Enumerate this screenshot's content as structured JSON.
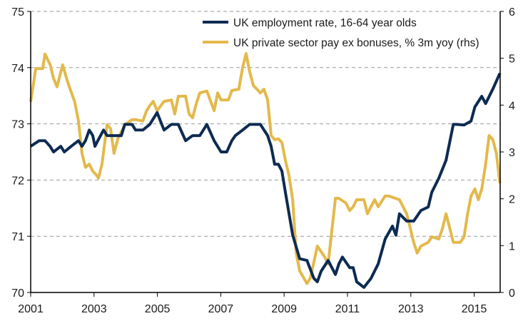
{
  "chart_data": {
    "type": "line",
    "title": "",
    "xlabel": "",
    "ylabel": "",
    "y2label": "",
    "xlim": [
      2001,
      2015.82
    ],
    "ylim": [
      70,
      75
    ],
    "y2lim": [
      0,
      6
    ],
    "x_ticks": [
      "2001",
      "2003",
      "2005",
      "2007",
      "2009",
      "2011",
      "2013",
      "2015"
    ],
    "y_ticks": [
      "70",
      "71",
      "72",
      "73",
      "74",
      "75"
    ],
    "y2_ticks": [
      "0",
      "1",
      "2",
      "3",
      "4",
      "5",
      "6"
    ],
    "grid": "horizontal dashed",
    "legend_position": "top-right",
    "series": [
      {
        "name": "UK employment rate, 16-64 year olds",
        "axis": "left",
        "color": "#0d2b52",
        "points": [
          [
            2001.0,
            72.6
          ],
          [
            2001.27,
            72.7
          ],
          [
            2001.45,
            72.7
          ],
          [
            2001.61,
            72.6
          ],
          [
            2001.72,
            72.5
          ],
          [
            2001.95,
            72.6
          ],
          [
            2002.06,
            72.5
          ],
          [
            2002.28,
            72.6
          ],
          [
            2002.51,
            72.7
          ],
          [
            2002.62,
            72.6
          ],
          [
            2002.73,
            72.7
          ],
          [
            2002.85,
            72.89
          ],
          [
            2002.96,
            72.79
          ],
          [
            2003.03,
            72.6
          ],
          [
            2003.12,
            72.7
          ],
          [
            2003.3,
            72.89
          ],
          [
            2003.41,
            72.79
          ],
          [
            2003.86,
            72.79
          ],
          [
            2003.97,
            72.99
          ],
          [
            2004.2,
            72.99
          ],
          [
            2004.31,
            72.89
          ],
          [
            2004.54,
            72.89
          ],
          [
            2004.76,
            72.99
          ],
          [
            2004.99,
            73.2
          ],
          [
            2005.21,
            72.89
          ],
          [
            2005.44,
            72.99
          ],
          [
            2005.66,
            72.99
          ],
          [
            2005.89,
            72.7
          ],
          [
            2006.11,
            72.79
          ],
          [
            2006.34,
            72.79
          ],
          [
            2006.56,
            72.99
          ],
          [
            2006.79,
            72.7
          ],
          [
            2007.01,
            72.5
          ],
          [
            2007.19,
            72.5
          ],
          [
            2007.35,
            72.7
          ],
          [
            2007.46,
            72.79
          ],
          [
            2007.69,
            72.89
          ],
          [
            2007.91,
            72.99
          ],
          [
            2008.25,
            72.99
          ],
          [
            2008.48,
            72.79
          ],
          [
            2008.59,
            72.6
          ],
          [
            2008.7,
            72.28
          ],
          [
            2008.82,
            72.28
          ],
          [
            2008.93,
            72.16
          ],
          [
            2009.04,
            71.78
          ],
          [
            2009.27,
            71.02
          ],
          [
            2009.49,
            70.6
          ],
          [
            2009.72,
            70.57
          ],
          [
            2009.94,
            70.25
          ],
          [
            2010.05,
            70.19
          ],
          [
            2010.17,
            70.38
          ],
          [
            2010.39,
            70.57
          ],
          [
            2010.62,
            70.32
          ],
          [
            2010.73,
            70.51
          ],
          [
            2010.84,
            70.63
          ],
          [
            2011.07,
            70.44
          ],
          [
            2011.18,
            70.44
          ],
          [
            2011.29,
            70.19
          ],
          [
            2011.52,
            70.09
          ],
          [
            2011.74,
            70.25
          ],
          [
            2011.97,
            70.51
          ],
          [
            2012.19,
            70.95
          ],
          [
            2012.42,
            71.18
          ],
          [
            2012.53,
            71.02
          ],
          [
            2012.64,
            71.4
          ],
          [
            2012.87,
            71.27
          ],
          [
            2013.09,
            71.27
          ],
          [
            2013.32,
            71.46
          ],
          [
            2013.55,
            71.52
          ],
          [
            2013.66,
            71.78
          ],
          [
            2013.88,
            72.03
          ],
          [
            2014.11,
            72.35
          ],
          [
            2014.34,
            72.99
          ],
          [
            2014.45,
            72.99
          ],
          [
            2014.68,
            72.98
          ],
          [
            2014.9,
            73.05
          ],
          [
            2015.02,
            73.3
          ],
          [
            2015.24,
            73.49
          ],
          [
            2015.36,
            73.36
          ],
          [
            2015.59,
            73.62
          ],
          [
            2015.81,
            73.9
          ]
        ]
      },
      {
        "name": "UK private sector pay ex bonuses, % 3m yoy (rhs)",
        "axis": "right",
        "color": "#e3b94b",
        "points": [
          [
            2001.0,
            4.07
          ],
          [
            2001.16,
            4.78
          ],
          [
            2001.27,
            4.78
          ],
          [
            2001.38,
            4.78
          ],
          [
            2001.45,
            5.09
          ],
          [
            2001.61,
            4.87
          ],
          [
            2001.72,
            4.57
          ],
          [
            2001.83,
            4.39
          ],
          [
            2002.01,
            4.86
          ],
          [
            2002.17,
            4.49
          ],
          [
            2002.39,
            4.07
          ],
          [
            2002.51,
            3.66
          ],
          [
            2002.62,
            2.97
          ],
          [
            2002.73,
            2.67
          ],
          [
            2002.85,
            2.74
          ],
          [
            2002.96,
            2.59
          ],
          [
            2003.07,
            2.51
          ],
          [
            2003.14,
            2.44
          ],
          [
            2003.25,
            2.74
          ],
          [
            2003.41,
            3.58
          ],
          [
            2003.52,
            3.5
          ],
          [
            2003.63,
            2.97
          ],
          [
            2003.75,
            3.28
          ],
          [
            2003.97,
            3.58
          ],
          [
            2004.2,
            3.69
          ],
          [
            2004.31,
            3.69
          ],
          [
            2004.54,
            3.66
          ],
          [
            2004.65,
            3.87
          ],
          [
            2004.76,
            3.99
          ],
          [
            2004.87,
            4.08
          ],
          [
            2004.99,
            3.88
          ],
          [
            2005.21,
            4.08
          ],
          [
            2005.44,
            4.11
          ],
          [
            2005.55,
            3.81
          ],
          [
            2005.66,
            4.19
          ],
          [
            2005.89,
            4.19
          ],
          [
            2006.0,
            3.81
          ],
          [
            2006.11,
            3.73
          ],
          [
            2006.23,
            4.04
          ],
          [
            2006.34,
            4.26
          ],
          [
            2006.56,
            4.3
          ],
          [
            2006.79,
            3.88
          ],
          [
            2006.9,
            4.26
          ],
          [
            2007.01,
            4.11
          ],
          [
            2007.24,
            4.11
          ],
          [
            2007.35,
            4.31
          ],
          [
            2007.57,
            4.34
          ],
          [
            2007.69,
            4.8
          ],
          [
            2007.8,
            5.1
          ],
          [
            2007.91,
            4.72
          ],
          [
            2008.03,
            4.42
          ],
          [
            2008.14,
            4.34
          ],
          [
            2008.25,
            4.26
          ],
          [
            2008.36,
            4.34
          ],
          [
            2008.48,
            4.11
          ],
          [
            2008.59,
            3.35
          ],
          [
            2008.7,
            3.26
          ],
          [
            2008.82,
            3.28
          ],
          [
            2008.93,
            3.2
          ],
          [
            2009.04,
            2.82
          ],
          [
            2009.15,
            2.51
          ],
          [
            2009.27,
            1.98
          ],
          [
            2009.38,
            0.84
          ],
          [
            2009.49,
            0.46
          ],
          [
            2009.72,
            0.19
          ],
          [
            2009.83,
            0.31
          ],
          [
            2010.05,
            0.99
          ],
          [
            2010.28,
            0.76
          ],
          [
            2010.39,
            0.61
          ],
          [
            2010.62,
            2.01
          ],
          [
            2010.73,
            2.01
          ],
          [
            2010.95,
            1.91
          ],
          [
            2011.07,
            1.75
          ],
          [
            2011.18,
            1.83
          ],
          [
            2011.29,
            1.98
          ],
          [
            2011.52,
            1.98
          ],
          [
            2011.63,
            1.68
          ],
          [
            2011.74,
            1.83
          ],
          [
            2011.86,
            1.98
          ],
          [
            2011.97,
            1.83
          ],
          [
            2012.19,
            2.06
          ],
          [
            2012.3,
            2.06
          ],
          [
            2012.64,
            1.98
          ],
          [
            2012.87,
            1.68
          ],
          [
            2013.09,
            1.07
          ],
          [
            2013.2,
            0.84
          ],
          [
            2013.32,
            0.99
          ],
          [
            2013.55,
            1.07
          ],
          [
            2013.66,
            1.19
          ],
          [
            2013.88,
            1.14
          ],
          [
            2014.0,
            1.37
          ],
          [
            2014.11,
            1.68
          ],
          [
            2014.23,
            1.37
          ],
          [
            2014.34,
            1.07
          ],
          [
            2014.56,
            1.07
          ],
          [
            2014.68,
            1.19
          ],
          [
            2014.79,
            1.68
          ],
          [
            2014.9,
            2.06
          ],
          [
            2015.02,
            2.21
          ],
          [
            2015.13,
            1.98
          ],
          [
            2015.24,
            2.21
          ],
          [
            2015.36,
            2.74
          ],
          [
            2015.47,
            3.35
          ],
          [
            2015.59,
            3.26
          ],
          [
            2015.7,
            2.97
          ],
          [
            2015.81,
            2.33
          ]
        ]
      }
    ]
  }
}
